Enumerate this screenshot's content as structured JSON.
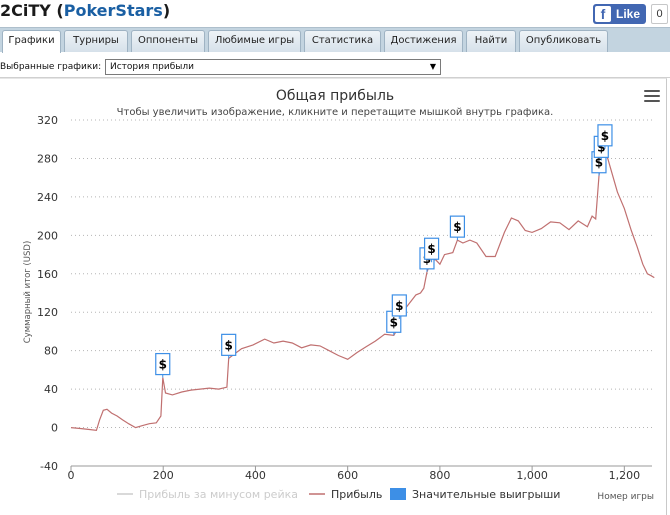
{
  "header": {
    "title_prefix": "2CiTY (",
    "title_site": "PokerStars",
    "title_suffix": ")",
    "fb_like_label": "Like",
    "fb_count": "0"
  },
  "tabs": [
    {
      "label": "Графики",
      "active": true
    },
    {
      "label": "Турниры",
      "active": false
    },
    {
      "label": "Оппоненты",
      "active": false
    },
    {
      "label": "Любимые игры",
      "active": false
    },
    {
      "label": "Статистика",
      "active": false
    },
    {
      "label": "Достижения",
      "active": false
    },
    {
      "label": "Найти",
      "active": false
    },
    {
      "label": "Опубликовать",
      "active": false
    }
  ],
  "toolbar": {
    "select_label": "Выбранные графики:",
    "select_value": "История прибыли"
  },
  "chart_data": {
    "type": "line",
    "title": "Общая прибыль",
    "subtitle": "Чтобы увеличить изображение, кликните и перетащите мышкой внутрь графика.",
    "ylabel": "Суммарный итог (USD)",
    "xlabel": "Номер игры",
    "xlim": [
      0,
      1260
    ],
    "ylim": [
      -40,
      320
    ],
    "x_ticks": [
      0,
      200,
      400,
      600,
      800,
      1000,
      1200
    ],
    "x_tick_labels": [
      "0",
      "200",
      "400",
      "600",
      "800",
      "1,000",
      "1,200"
    ],
    "y_ticks": [
      -40,
      0,
      40,
      80,
      120,
      160,
      200,
      240,
      280,
      320
    ],
    "grid": "horizontal dotted",
    "legend_placement": "bottom-center",
    "series": [
      {
        "name": "Прибыль за минусом рейка",
        "color": "#cccccc",
        "hidden": true,
        "points": []
      },
      {
        "name": "Прибыль",
        "color": "#c07070",
        "points": [
          [
            0,
            0
          ],
          [
            20,
            -1
          ],
          [
            40,
            -2
          ],
          [
            55,
            -3
          ],
          [
            62,
            8
          ],
          [
            70,
            18
          ],
          [
            78,
            19
          ],
          [
            88,
            15
          ],
          [
            100,
            12
          ],
          [
            112,
            8
          ],
          [
            125,
            4
          ],
          [
            140,
            0
          ],
          [
            155,
            2
          ],
          [
            170,
            4
          ],
          [
            185,
            5
          ],
          [
            195,
            12
          ],
          [
            199,
            52
          ],
          [
            205,
            36
          ],
          [
            220,
            34
          ],
          [
            240,
            37
          ],
          [
            260,
            39
          ],
          [
            280,
            40
          ],
          [
            300,
            41
          ],
          [
            320,
            40
          ],
          [
            338,
            42
          ],
          [
            342,
            72
          ],
          [
            350,
            75
          ],
          [
            370,
            82
          ],
          [
            395,
            86
          ],
          [
            420,
            92
          ],
          [
            440,
            88
          ],
          [
            460,
            90
          ],
          [
            480,
            88
          ],
          [
            500,
            83
          ],
          [
            520,
            86
          ],
          [
            540,
            85
          ],
          [
            560,
            80
          ],
          [
            580,
            75
          ],
          [
            600,
            71
          ],
          [
            620,
            78
          ],
          [
            640,
            84
          ],
          [
            660,
            90
          ],
          [
            680,
            97
          ],
          [
            700,
            96
          ],
          [
            705,
            100
          ],
          [
            712,
            113
          ],
          [
            722,
            122
          ],
          [
            735,
            130
          ],
          [
            748,
            138
          ],
          [
            758,
            140
          ],
          [
            765,
            145
          ],
          [
            772,
            162
          ],
          [
            780,
            172
          ],
          [
            790,
            175
          ],
          [
            800,
            170
          ],
          [
            810,
            180
          ],
          [
            828,
            182
          ],
          [
            838,
            195
          ],
          [
            850,
            192
          ],
          [
            865,
            195
          ],
          [
            880,
            192
          ],
          [
            900,
            178
          ],
          [
            920,
            178
          ],
          [
            940,
            203
          ],
          [
            955,
            218
          ],
          [
            970,
            215
          ],
          [
            985,
            205
          ],
          [
            1000,
            203
          ],
          [
            1020,
            207
          ],
          [
            1040,
            214
          ],
          [
            1060,
            213
          ],
          [
            1080,
            206
          ],
          [
            1100,
            215
          ],
          [
            1120,
            209
          ],
          [
            1130,
            220
          ],
          [
            1138,
            217
          ],
          [
            1145,
            262
          ],
          [
            1150,
            278
          ],
          [
            1158,
            290
          ],
          [
            1170,
            270
          ],
          [
            1185,
            245
          ],
          [
            1200,
            228
          ],
          [
            1215,
            205
          ],
          [
            1228,
            188
          ],
          [
            1240,
            170
          ],
          [
            1250,
            160
          ],
          [
            1258,
            158
          ],
          [
            1265,
            156
          ]
        ]
      },
      {
        "name": "Значительные выигрыши",
        "color": "#3d8fe6",
        "marker_symbol": "$",
        "points": [
          [
            199,
            52
          ],
          [
            342,
            72
          ],
          [
            700,
            96
          ],
          [
            712,
            113
          ],
          [
            772,
            162
          ],
          [
            782,
            172
          ],
          [
            838,
            195
          ],
          [
            1145,
            262
          ],
          [
            1150,
            278
          ],
          [
            1158,
            290
          ]
        ]
      }
    ]
  }
}
